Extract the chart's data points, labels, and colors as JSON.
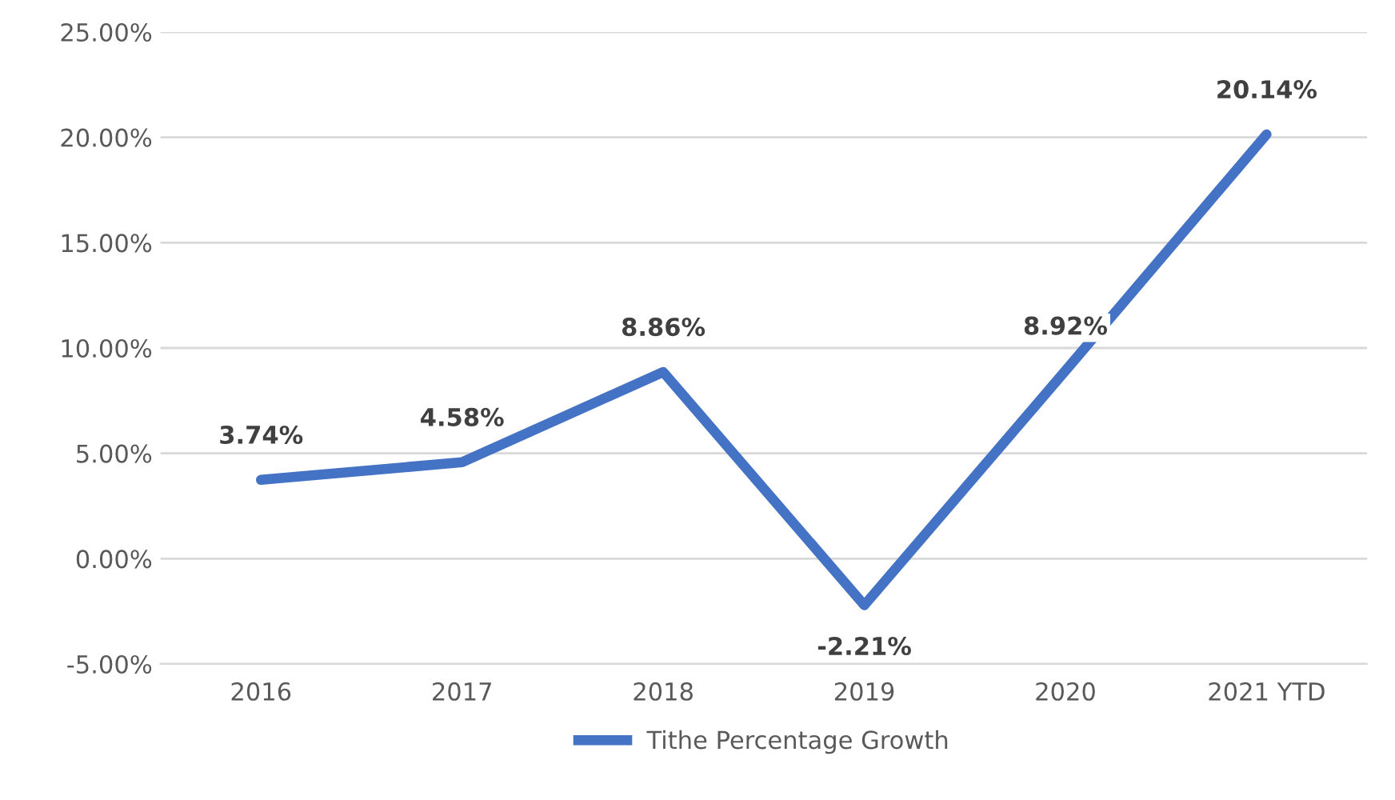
{
  "chart_data": {
    "type": "line",
    "categories": [
      "2016",
      "2017",
      "2018",
      "2019",
      "2020",
      "2021 YTD"
    ],
    "series": [
      {
        "name": "Tithe Percentage Growth",
        "color": "#4472c4",
        "values": [
          3.74,
          4.58,
          8.86,
          -2.21,
          8.92,
          20.14
        ],
        "value_labels": [
          "3.74%",
          "4.58%",
          "8.86%",
          "-2.21%",
          "8.92%",
          "20.14%"
        ]
      }
    ],
    "ylim": [
      -5,
      25
    ],
    "yticks": [
      {
        "value": -5,
        "label": "-5.00%"
      },
      {
        "value": 0,
        "label": "0.00%"
      },
      {
        "value": 5,
        "label": "5.00%"
      },
      {
        "value": 10,
        "label": "10.00%"
      },
      {
        "value": 15,
        "label": "15.00%"
      },
      {
        "value": 20,
        "label": "20.00%"
      },
      {
        "value": 25,
        "label": "25.00%"
      }
    ],
    "grid": "y",
    "legend": "bottom",
    "marker": "none",
    "line_style": "solid"
  }
}
